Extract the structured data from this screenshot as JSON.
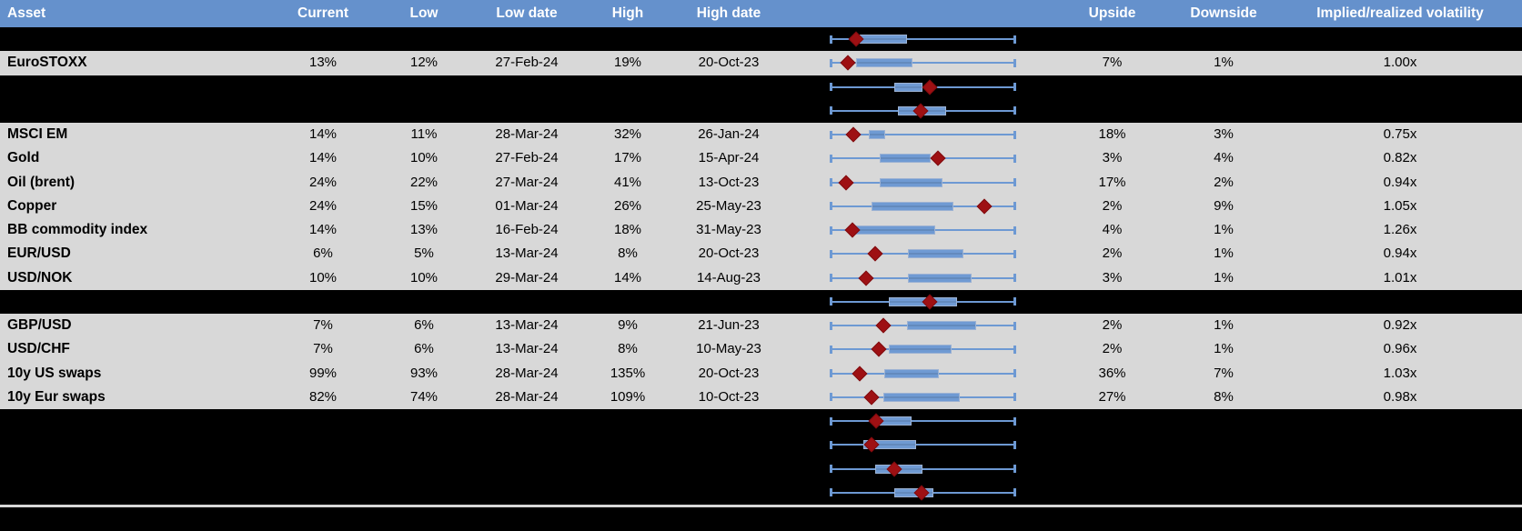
{
  "colors": {
    "header_bg": "#6591CC",
    "header_text": "#FFFFFF",
    "data_row_bg": "#D8D8D8",
    "hidden_row_bg": "#000000",
    "whisker_blue": "#6D99D3",
    "box_blue": "#6F9AD3",
    "marker_red": "#9E1013"
  },
  "table": {
    "headers": {
      "asset": "Asset",
      "current": "Current",
      "low": "Low",
      "low_date": "Low date",
      "high": "High",
      "high_date": "High date",
      "chart": "",
      "upside": "Upside",
      "downside": "Downside",
      "ivrv": "Implied/realized volatility"
    },
    "rows": [
      {
        "kind": "hidden",
        "plot": {
          "lo": 16.1,
          "hi": 41.5,
          "marker": 14.1
        }
      },
      {
        "kind": "data",
        "asset": "EuroSTOXX",
        "current": "13%",
        "low": "12%",
        "low_date": "27-Feb-24",
        "high": "19%",
        "high_date": "20-Oct-23",
        "upside": "7%",
        "downside": "1%",
        "ivrv": "1.00x",
        "plot": {
          "lo": 14.1,
          "hi": 44.4,
          "marker": 9.8
        }
      },
      {
        "kind": "hidden",
        "plot": {
          "lo": 34.6,
          "hi": 49.8,
          "marker": 53.7
        }
      },
      {
        "kind": "hidden",
        "plot": {
          "lo": 36.6,
          "hi": 62.4,
          "marker": 48.8
        }
      },
      {
        "kind": "data",
        "asset": "MSCI EM",
        "current": "14%",
        "low": "11%",
        "low_date": "28-Mar-24",
        "high": "32%",
        "high_date": "26-Jan-24",
        "upside": "18%",
        "downside": "3%",
        "ivrv": "0.75x",
        "plot": {
          "lo": 21.0,
          "hi": 29.8,
          "marker": 12.7
        }
      },
      {
        "kind": "data",
        "asset": "Gold",
        "current": "14%",
        "low": "10%",
        "low_date": "27-Feb-24",
        "high": "17%",
        "high_date": "15-Apr-24",
        "upside": "3%",
        "downside": "4%",
        "ivrv": "0.82x",
        "plot": {
          "lo": 26.8,
          "hi": 54.1,
          "marker": 58.0
        }
      },
      {
        "kind": "data",
        "asset": "Oil (brent)",
        "current": "24%",
        "low": "22%",
        "low_date": "27-Mar-24",
        "high": "41%",
        "high_date": "13-Oct-23",
        "upside": "17%",
        "downside": "2%",
        "ivrv": "0.94x",
        "plot": {
          "lo": 26.8,
          "hi": 60.5,
          "marker": 8.8
        }
      },
      {
        "kind": "data",
        "asset": "Copper",
        "current": "24%",
        "low": "15%",
        "low_date": "01-Mar-24",
        "high": "26%",
        "high_date": "25-May-23",
        "upside": "2%",
        "downside": "9%",
        "ivrv": "1.05x",
        "plot": {
          "lo": 22.4,
          "hi": 66.3,
          "marker": 82.9
        }
      },
      {
        "kind": "data",
        "asset": "BB commodity index",
        "current": "14%",
        "low": "13%",
        "low_date": "16-Feb-24",
        "high": "18%",
        "high_date": "31-May-23",
        "upside": "4%",
        "downside": "1%",
        "ivrv": "1.26x",
        "plot": {
          "lo": 13.7,
          "hi": 56.6,
          "marker": 12.2
        }
      },
      {
        "kind": "data",
        "asset": "EUR/USD",
        "current": "6%",
        "low": "5%",
        "low_date": "13-Mar-24",
        "high": "8%",
        "high_date": "20-Oct-23",
        "upside": "2%",
        "downside": "1%",
        "ivrv": "0.94x",
        "plot": {
          "lo": 42.0,
          "hi": 71.7,
          "marker": 24.4
        }
      },
      {
        "kind": "data",
        "asset": "USD/NOK",
        "current": "10%",
        "low": "10%",
        "low_date": "29-Mar-24",
        "high": "14%",
        "high_date": "14-Aug-23",
        "upside": "3%",
        "downside": "1%",
        "ivrv": "1.01x",
        "plot": {
          "lo": 42.0,
          "hi": 76.1,
          "marker": 19.5
        }
      },
      {
        "kind": "hidden",
        "plot": {
          "lo": 31.7,
          "hi": 68.3,
          "marker": 53.7
        }
      },
      {
        "kind": "data",
        "asset": "GBP/USD",
        "current": "7%",
        "low": "6%",
        "low_date": "13-Mar-24",
        "high": "9%",
        "high_date": "21-Jun-23",
        "upside": "2%",
        "downside": "1%",
        "ivrv": "0.92x",
        "plot": {
          "lo": 41.5,
          "hi": 78.5,
          "marker": 28.8
        }
      },
      {
        "kind": "data",
        "asset": "USD/CHF",
        "current": "7%",
        "low": "6%",
        "low_date": "13-Mar-24",
        "high": "8%",
        "high_date": "10-May-23",
        "upside": "2%",
        "downside": "1%",
        "ivrv": "0.96x",
        "plot": {
          "lo": 31.7,
          "hi": 65.4,
          "marker": 26.3
        }
      },
      {
        "kind": "data",
        "asset": "10y US swaps",
        "current": "99%",
        "low": "93%",
        "low_date": "28-Mar-24",
        "high": "135%",
        "high_date": "20-Oct-23",
        "upside": "36%",
        "downside": "7%",
        "ivrv": "1.03x",
        "plot": {
          "lo": 29.3,
          "hi": 58.5,
          "marker": 16.1
        }
      },
      {
        "kind": "data",
        "asset": "10y Eur swaps",
        "current": "82%",
        "low": "74%",
        "low_date": "28-Mar-24",
        "high": "109%",
        "high_date": "10-Oct-23",
        "upside": "27%",
        "downside": "8%",
        "ivrv": "0.98x",
        "plot": {
          "lo": 28.8,
          "hi": 69.8,
          "marker": 22.4
        }
      },
      {
        "kind": "hidden",
        "plot": {
          "lo": 25.9,
          "hi": 43.9,
          "marker": 24.9
        }
      },
      {
        "kind": "hidden",
        "plot": {
          "lo": 18.0,
          "hi": 46.3,
          "marker": 22.4
        }
      },
      {
        "kind": "hidden",
        "plot": {
          "lo": 24.4,
          "hi": 49.8,
          "marker": 34.6
        }
      },
      {
        "kind": "hidden",
        "plot": {
          "lo": 34.6,
          "hi": 55.6,
          "marker": 49.3
        }
      },
      {
        "kind": "blank"
      }
    ]
  }
}
